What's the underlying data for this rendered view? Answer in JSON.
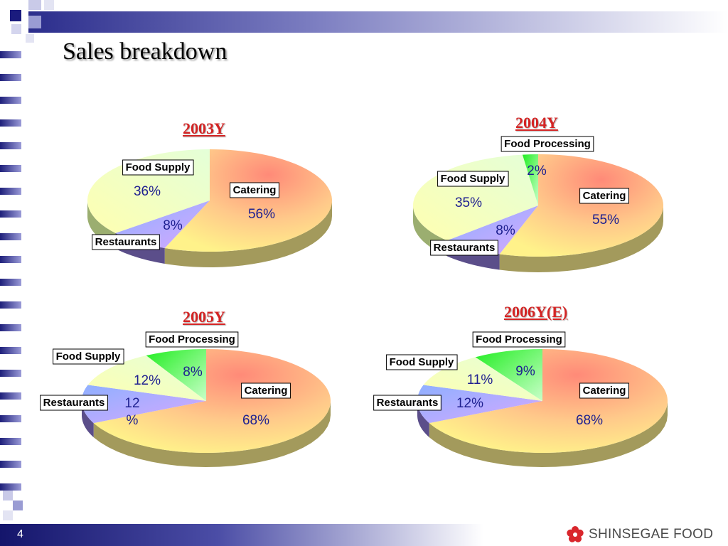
{
  "slide": {
    "title": "Sales breakdown",
    "page_number": "4",
    "logo_text": "SHINSEGAE FOOD"
  },
  "colors": {
    "percent_text": "#1e2090",
    "year_title": "#d42424"
  },
  "chart_data": [
    {
      "type": "pie",
      "title": "2003Y",
      "slices": [
        {
          "label": "Catering",
          "value": 56,
          "display": "56%"
        },
        {
          "label": "Restaurants",
          "value": 8,
          "display": "8%"
        },
        {
          "label": "Food Supply",
          "value": 36,
          "display": "36%"
        }
      ]
    },
    {
      "type": "pie",
      "title": "2004Y",
      "slices": [
        {
          "label": "Catering",
          "value": 55,
          "display": "55%"
        },
        {
          "label": "Restaurants",
          "value": 8,
          "display": "8%"
        },
        {
          "label": "Food Supply",
          "value": 35,
          "display": "35%"
        },
        {
          "label": "Food Processing",
          "value": 2,
          "display": "2%"
        }
      ]
    },
    {
      "type": "pie",
      "title": "2005Y",
      "slices": [
        {
          "label": "Catering",
          "value": 68,
          "display": "68%"
        },
        {
          "label": "Restaurants",
          "value": 12,
          "display": "12\n%"
        },
        {
          "label": "Food Supply",
          "value": 12,
          "display": "12%"
        },
        {
          "label": "Food Processing",
          "value": 8,
          "display": "8%"
        }
      ]
    },
    {
      "type": "pie",
      "title": "2006Y(E)",
      "slices": [
        {
          "label": "Catering",
          "value": 68,
          "display": "68%"
        },
        {
          "label": "Restaurants",
          "value": 12,
          "display": "12%"
        },
        {
          "label": "Food Supply",
          "value": 11,
          "display": "11%"
        },
        {
          "label": "Food Processing",
          "value": 9,
          "display": "9%"
        }
      ]
    }
  ]
}
